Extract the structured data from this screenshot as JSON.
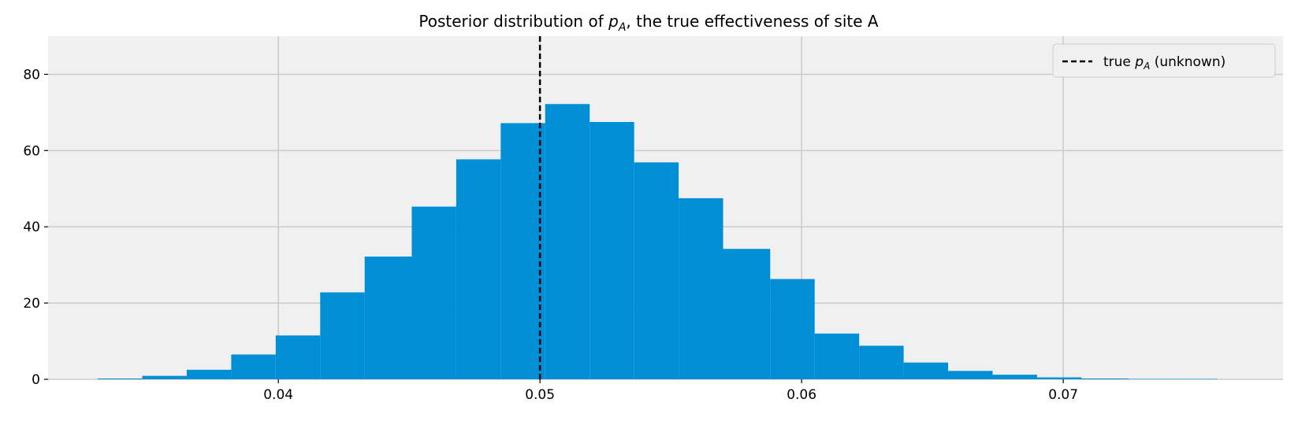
{
  "chart_data": {
    "type": "bar",
    "title": "Posterior distribution of p_A, the true effectiveness of site A",
    "title_parts": {
      "before": "Posterior distribution of ",
      "var": "p",
      "sub": "A",
      "after": ", the true effectiveness of site A"
    },
    "xlabel": "",
    "ylabel": "",
    "xlim": [
      0.0312,
      0.0784
    ],
    "ylim": [
      0,
      90
    ],
    "x_ticks": [
      0.04,
      0.05,
      0.06,
      0.07
    ],
    "x_tick_labels": [
      "0.04",
      "0.05",
      "0.06",
      "0.07"
    ],
    "y_ticks": [
      0,
      20,
      40,
      60,
      80
    ],
    "y_tick_labels": [
      "0",
      "20",
      "40",
      "60",
      "80"
    ],
    "grid": true,
    "bar_color": "#008fd5",
    "plot_background": "#f0f0f0",
    "bins": [
      {
        "x0": 0.0331,
        "x1": 0.0348,
        "value": 0.2
      },
      {
        "x0": 0.0348,
        "x1": 0.0365,
        "value": 0.9
      },
      {
        "x0": 0.0365,
        "x1": 0.0382,
        "value": 2.5
      },
      {
        "x0": 0.0382,
        "x1": 0.0399,
        "value": 6.5
      },
      {
        "x0": 0.0399,
        "x1": 0.0416,
        "value": 11.5
      },
      {
        "x0": 0.0416,
        "x1": 0.0433,
        "value": 22.8
      },
      {
        "x0": 0.0433,
        "x1": 0.0451,
        "value": 32.2
      },
      {
        "x0": 0.0451,
        "x1": 0.0468,
        "value": 45.3
      },
      {
        "x0": 0.0468,
        "x1": 0.0485,
        "value": 57.7
      },
      {
        "x0": 0.0485,
        "x1": 0.0502,
        "value": 67.2
      },
      {
        "x0": 0.0502,
        "x1": 0.0519,
        "value": 72.2
      },
      {
        "x0": 0.0519,
        "x1": 0.0536,
        "value": 67.5
      },
      {
        "x0": 0.0536,
        "x1": 0.0553,
        "value": 56.9
      },
      {
        "x0": 0.0553,
        "x1": 0.057,
        "value": 47.5
      },
      {
        "x0": 0.057,
        "x1": 0.0588,
        "value": 34.2
      },
      {
        "x0": 0.0588,
        "x1": 0.0605,
        "value": 26.3
      },
      {
        "x0": 0.0605,
        "x1": 0.0622,
        "value": 12.0
      },
      {
        "x0": 0.0622,
        "x1": 0.0639,
        "value": 8.8
      },
      {
        "x0": 0.0639,
        "x1": 0.0656,
        "value": 4.4
      },
      {
        "x0": 0.0656,
        "x1": 0.0673,
        "value": 2.2
      },
      {
        "x0": 0.0673,
        "x1": 0.069,
        "value": 1.2
      },
      {
        "x0": 0.069,
        "x1": 0.0707,
        "value": 0.5
      },
      {
        "x0": 0.0707,
        "x1": 0.0725,
        "value": 0.2
      },
      {
        "x0": 0.0725,
        "x1": 0.0742,
        "value": 0.1
      },
      {
        "x0": 0.0742,
        "x1": 0.0759,
        "value": 0.1
      }
    ],
    "reference_line": {
      "x": 0.05,
      "ymax": 90,
      "style": "dashed",
      "color": "#000000"
    },
    "legend": {
      "placement": "top-right",
      "entries": [
        {
          "label": "true p_A (unknown)",
          "prefix": "true ",
          "var": "p",
          "sub": "A",
          "suffix": " (unknown)",
          "style": "dashed",
          "color": "#000000"
        }
      ]
    }
  }
}
